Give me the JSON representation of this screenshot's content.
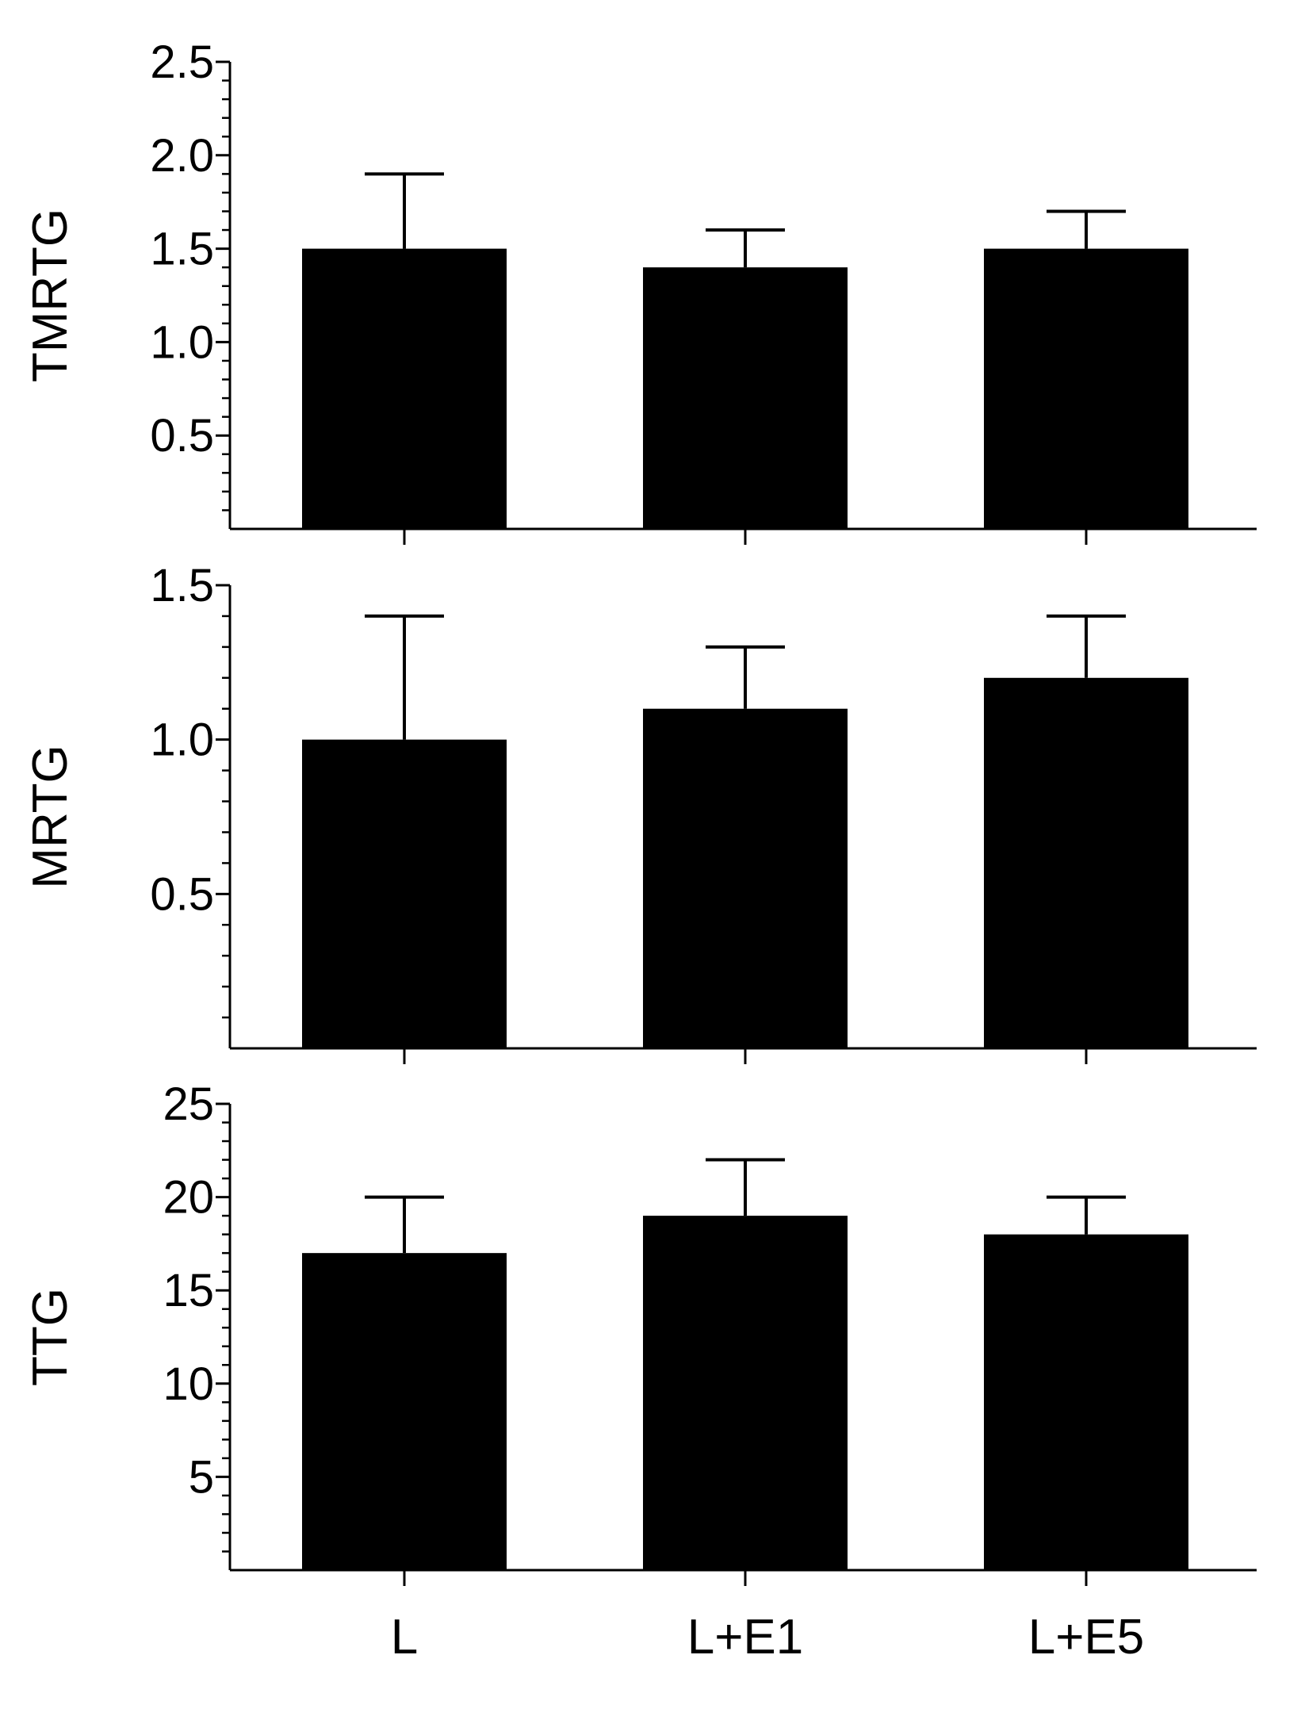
{
  "chart_data": [
    {
      "type": "bar",
      "categories": [
        "L",
        "L+E1",
        "L+E5"
      ],
      "values": [
        1.5,
        1.4,
        1.5
      ],
      "errors": [
        0.4,
        0.2,
        0.2
      ],
      "ylabel": "TMRTG",
      "ylim": [
        0,
        2.5
      ],
      "yticks": [
        0.5,
        1.0,
        1.5,
        2.0,
        2.5
      ],
      "ytick_labels": [
        "0.5",
        "1.0",
        "1.5",
        "2.0",
        "2.5"
      ],
      "minor_step": 0.1,
      "grid": false
    },
    {
      "type": "bar",
      "categories": [
        "L",
        "L+E1",
        "L+E5"
      ],
      "values": [
        1.0,
        1.1,
        1.2
      ],
      "errors": [
        0.4,
        0.2,
        0.2
      ],
      "ylabel": "MRTG",
      "ylim": [
        0,
        1.5
      ],
      "yticks": [
        0.5,
        1.0,
        1.5
      ],
      "ytick_labels": [
        "0.5",
        "1.0",
        "1.5"
      ],
      "minor_step": 0.1,
      "grid": false
    },
    {
      "type": "bar",
      "categories": [
        "L",
        "L+E1",
        "L+E5"
      ],
      "values": [
        17,
        19,
        18
      ],
      "errors": [
        3,
        3,
        2
      ],
      "ylabel": "TTG",
      "ylim": [
        0,
        25
      ],
      "yticks": [
        5,
        10,
        15,
        20,
        25
      ],
      "ytick_labels": [
        "5",
        "10",
        "15",
        "20",
        "25"
      ],
      "minor_step": 1,
      "grid": false
    }
  ],
  "colors": {
    "bar": "#000000",
    "axis": "#000000",
    "background": "#ffffff"
  }
}
